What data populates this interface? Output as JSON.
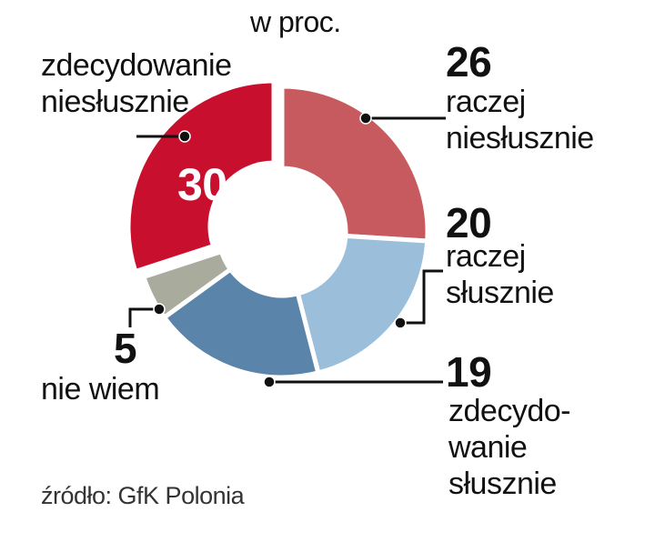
{
  "chart_data": {
    "type": "donut",
    "title": "w proc.",
    "source": "źródło: GfK Polonia",
    "categories": [
      "raczej\nniesłusznie",
      "raczej\nsłusznie",
      "zdecydo-\nwanie\nsłusznie",
      "nie wiem",
      "zdecydowanie\nniesłusznie"
    ],
    "values": [
      26,
      20,
      19,
      5,
      30
    ],
    "colors": [
      "#c65a5e",
      "#9bbfdb",
      "#5b84aa",
      "#a9ab9c",
      "#c8102e"
    ]
  }
}
